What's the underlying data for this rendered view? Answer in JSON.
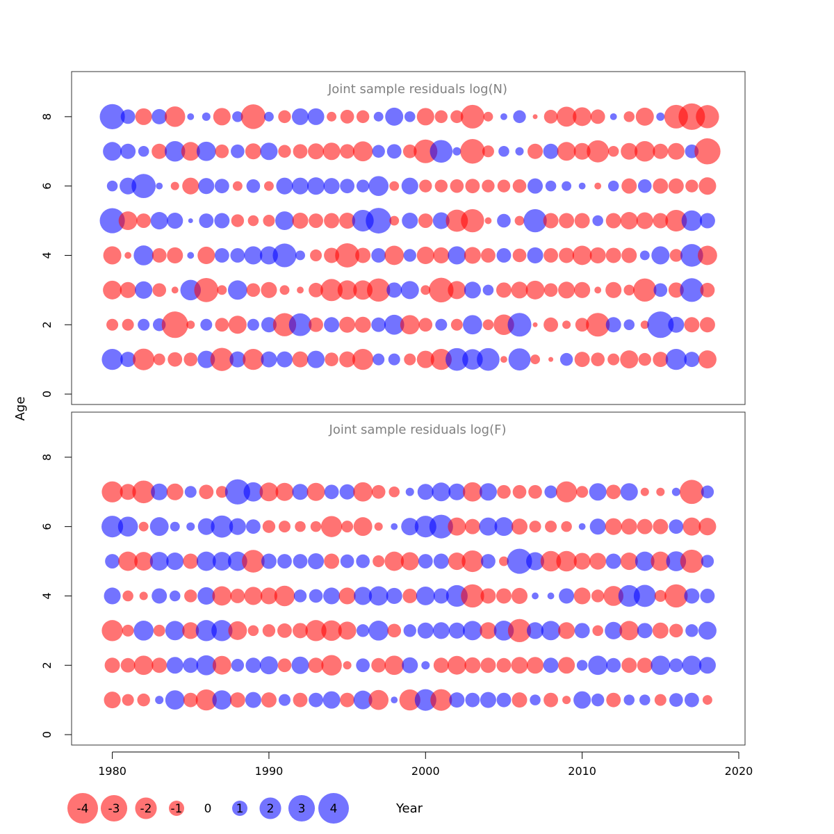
{
  "chart_data": {
    "type": "scatter",
    "encoding": "bubble",
    "xlabel": "Year",
    "ylabel": "Age",
    "xlim": [
      1977.4,
      2020.4
    ],
    "xticks": [
      1980,
      1990,
      2000,
      2010,
      2020
    ],
    "colors": {
      "positive": "#0000ff",
      "negative": "#ff0000",
      "opacity": 0.55
    },
    "years": [
      1980,
      1981,
      1982,
      1983,
      1984,
      1985,
      1986,
      1987,
      1988,
      1989,
      1990,
      1991,
      1992,
      1993,
      1994,
      1995,
      1996,
      1997,
      1998,
      1999,
      2000,
      2001,
      2002,
      2003,
      2004,
      2005,
      2006,
      2007,
      2008,
      2009,
      2010,
      2011,
      2012,
      2013,
      2014,
      2015,
      2016,
      2017,
      2018
    ],
    "panels": [
      {
        "title": "Joint sample residuals log(N)",
        "ylim": [
          -0.3,
          9.3
        ],
        "yticks": [
          0,
          2,
          4,
          6,
          8
        ],
        "ages": [
          1,
          2,
          3,
          4,
          5,
          6,
          7,
          8
        ],
        "residuals": [
          [
            1.9,
            1.0,
            -2.0,
            -0.6,
            -0.9,
            -0.8,
            1.3,
            -2.3,
            1.1,
            -1.9,
            1.1,
            1.1,
            -1.1,
            1.3,
            -0.8,
            -1.1,
            -1.9,
            0.6,
            0.6,
            -0.6,
            -1.3,
            -1.9,
            2.2,
            1.8,
            2.2,
            -0.2,
            2.1,
            -0.4,
            -0.1,
            0.7,
            -1.0,
            -0.8,
            -0.6,
            -1.4,
            -0.7,
            -1.0,
            1.9,
            1.0,
            -1.4
          ],
          [
            -0.6,
            -0.6,
            0.6,
            0.7,
            -3.0,
            -0.3,
            0.6,
            -0.8,
            -1.4,
            0.6,
            1.0,
            -2.3,
            2.2,
            -0.9,
            1.0,
            -1.1,
            -1.1,
            0.9,
            1.7,
            -1.6,
            -0.8,
            0.6,
            -0.6,
            1.6,
            -0.5,
            -1.8,
            2.4,
            -0.1,
            -0.9,
            -0.3,
            -0.8,
            -2.4,
            1.0,
            0.5,
            -0.3,
            3.0,
            1.1,
            -1.0,
            -1.0
          ],
          [
            -1.5,
            -1.1,
            1.3,
            -0.8,
            -0.2,
            1.8,
            -2.5,
            -0.4,
            1.6,
            -0.8,
            -1.1,
            -0.4,
            -0.2,
            -0.9,
            -2.1,
            -1.6,
            -1.6,
            -2.3,
            1.0,
            1.4,
            -0.4,
            -2.6,
            -1.4,
            1.2,
            0.5,
            -1.0,
            -1.2,
            -1.5,
            -0.8,
            -1.2,
            -1.1,
            -0.2,
            -1.1,
            -0.5,
            -2.3,
            0.8,
            -1.0,
            2.4,
            -0.9
          ],
          [
            -1.4,
            -0.2,
            1.7,
            -0.9,
            -1.1,
            0.2,
            -1.3,
            0.9,
            0.9,
            1.4,
            1.4,
            2.4,
            0.4,
            -0.6,
            -1.0,
            -2.5,
            -1.0,
            0.9,
            -1.6,
            0.7,
            -1.3,
            -1.1,
            1.4,
            -1.2,
            -0.9,
            0.9,
            -0.8,
            1.1,
            -0.9,
            -1.0,
            -1.6,
            -1.1,
            -1.0,
            -1.0,
            0.4,
            1.4,
            -0.7,
            2.2,
            -1.6
          ],
          [
            2.7,
            -1.5,
            -0.9,
            1.3,
            1.1,
            0.1,
            0.9,
            1.0,
            -0.7,
            -0.5,
            -0.6,
            1.5,
            -1.1,
            -0.9,
            -1.0,
            -1.1,
            2.0,
            2.8,
            -0.4,
            1.1,
            -0.9,
            1.2,
            -2.1,
            -2.3,
            -0.2,
            0.8,
            -0.4,
            2.3,
            -1.0,
            -1.0,
            -1.0,
            0.5,
            -1.0,
            -1.3,
            -1.2,
            -1.0,
            -2.0,
            1.8,
            1.0
          ],
          [
            0.5,
            1.2,
            2.5,
            0.2,
            -0.3,
            -1.2,
            1.1,
            0.9,
            -0.4,
            0.8,
            -0.4,
            1.2,
            1.2,
            1.3,
            1.1,
            0.9,
            0.7,
            1.7,
            -0.4,
            1.2,
            -0.7,
            -0.7,
            -0.8,
            -0.9,
            -0.7,
            -0.7,
            -0.8,
            1.0,
            0.5,
            0.4,
            0.2,
            -0.2,
            0.5,
            -1.0,
            0.8,
            -1.0,
            -1.0,
            -0.7,
            -1.3
          ],
          [
            1.5,
            1.0,
            0.5,
            -1.0,
            1.8,
            -1.5,
            1.6,
            -0.8,
            0.8,
            -1.1,
            1.3,
            -0.7,
            -0.9,
            -1.1,
            -1.3,
            -0.9,
            -1.7,
            0.7,
            0.9,
            -0.8,
            -2.4,
            2.2,
            0.3,
            -2.6,
            -0.6,
            0.5,
            0.3,
            -1.0,
            1.0,
            -1.5,
            -1.2,
            -2.1,
            -0.5,
            -1.2,
            -1.8,
            -1.0,
            -1.2,
            0.8,
            -2.9
          ],
          [
            2.7,
            0.9,
            -1.2,
            1.0,
            -1.8,
            0.2,
            0.3,
            -1.3,
            0.5,
            -2.6,
            0.4,
            -0.7,
            1.2,
            1.2,
            -0.4,
            -0.8,
            -0.7,
            0.4,
            1.4,
            0.5,
            -1.3,
            -0.7,
            -0.7,
            -2.4,
            -0.4,
            0.2,
            0.7,
            -0.1,
            -0.8,
            -1.7,
            -1.5,
            -0.9,
            0.2,
            -0.5,
            -1.4,
            0.3,
            -2.4,
            -3.0,
            -2.3
          ]
        ]
      },
      {
        "title": "Joint sample residuals log(F)",
        "ylim": [
          -0.3,
          9.3
        ],
        "yticks": [
          0,
          2,
          4,
          6,
          8
        ],
        "ages": [
          1,
          2,
          3,
          4,
          5,
          6,
          7
        ],
        "residuals": [
          [
            -1.2,
            -0.6,
            -0.7,
            0.3,
            1.6,
            -0.9,
            -1.9,
            1.6,
            -1.0,
            1.1,
            -1.0,
            0.6,
            -0.9,
            0.9,
            1.3,
            -0.9,
            1.5,
            -1.7,
            0.2,
            -1.9,
            2.0,
            -2.0,
            1.0,
            0.9,
            1.1,
            0.9,
            -1.0,
            0.5,
            -0.9,
            -0.3,
            1.3,
            0.7,
            -0.9,
            0.5,
            0.5,
            -0.6,
            0.8,
            0.9,
            -0.4
          ],
          [
            -1.0,
            -0.9,
            -1.6,
            -1.0,
            1.2,
            1.0,
            1.7,
            -1.5,
            0.7,
            1.0,
            1.4,
            -0.8,
            1.3,
            -1.0,
            -1.8,
            -0.3,
            0.8,
            -0.9,
            -1.6,
            1.1,
            0.3,
            -1.0,
            -1.5,
            -1.1,
            -1.0,
            -0.9,
            -1.2,
            -1.2,
            1.0,
            -1.2,
            0.5,
            1.6,
            0.9,
            -1.0,
            -1.0,
            1.6,
            0.8,
            1.6,
            1.2
          ],
          [
            -1.9,
            -0.6,
            1.7,
            -0.6,
            1.6,
            -1.2,
            1.9,
            1.9,
            -1.5,
            -0.5,
            -0.7,
            -0.9,
            -1.0,
            -1.9,
            -1.8,
            -1.4,
            0.7,
            1.7,
            -0.8,
            0.7,
            1.1,
            1.2,
            1.1,
            1.6,
            -1.2,
            1.7,
            -2.3,
            1.2,
            1.6,
            -1.2,
            1.0,
            -0.5,
            1.3,
            -1.6,
            1.0,
            -1.1,
            -0.8,
            0.7,
            1.4
          ],
          [
            1.2,
            -0.5,
            -0.3,
            1.0,
            0.5,
            -0.7,
            1.3,
            -1.6,
            -0.9,
            -1.4,
            -1.2,
            -1.8,
            0.7,
            0.8,
            1.2,
            -1.2,
            1.4,
            1.6,
            1.1,
            -0.9,
            1.5,
            1.0,
            2.0,
            -2.3,
            -1.0,
            -1.0,
            -1.1,
            0.2,
            0.2,
            1.0,
            -1.2,
            -0.7,
            -1.7,
            2.0,
            2.1,
            -0.6,
            -2.3,
            1.0,
            0.9
          ],
          [
            0.9,
            -1.6,
            -1.5,
            1.5,
            1.3,
            -1.0,
            1.6,
            1.5,
            1.6,
            -2.2,
            1.0,
            0.9,
            0.9,
            1.1,
            -1.0,
            0.8,
            0.8,
            -0.6,
            -1.6,
            -1.4,
            0.9,
            1.0,
            -1.3,
            -2.0,
            0.9,
            -0.4,
            2.7,
            1.4,
            -1.8,
            -1.8,
            -1.2,
            -1.2,
            1.0,
            -1.3,
            1.6,
            -1.6,
            1.7,
            -2.3,
            0.7
          ],
          [
            2.0,
            1.7,
            -0.4,
            1.5,
            0.4,
            0.3,
            1.2,
            2.1,
            1.2,
            0.9,
            -0.7,
            -0.6,
            -0.5,
            -0.5,
            -1.9,
            -0.6,
            -1.5,
            -0.3,
            0.2,
            1.3,
            2.0,
            2.4,
            -1.4,
            -1.0,
            1.4,
            1.5,
            -1.1,
            -0.6,
            -0.6,
            -0.5,
            0.2,
            1.1,
            -1.2,
            -1.1,
            -1.0,
            -1.0,
            0.9,
            -1.4,
            -1.3
          ],
          [
            -1.9,
            -1.1,
            -2.2,
            1.2,
            -1.2,
            0.6,
            -0.9,
            -0.6,
            2.7,
            1.6,
            -1.5,
            -1.4,
            1.1,
            -1.4,
            0.9,
            1.0,
            -1.6,
            -0.8,
            -0.5,
            0.3,
            1.1,
            1.5,
            1.2,
            -1.6,
            1.3,
            -0.8,
            -0.8,
            -0.8,
            0.7,
            -1.9,
            -0.6,
            1.3,
            -0.9,
            1.3,
            -0.3,
            -0.3,
            0.3,
            -2.5,
            0.7
          ]
        ]
      }
    ],
    "legend": {
      "placement": "bottom-left",
      "values": [
        -4,
        -3,
        -2,
        -1,
        0,
        1,
        2,
        3,
        4
      ],
      "labels": [
        "-4",
        "-3",
        "-2",
        "-1",
        "0",
        "1",
        "2",
        "3",
        "4"
      ]
    }
  }
}
